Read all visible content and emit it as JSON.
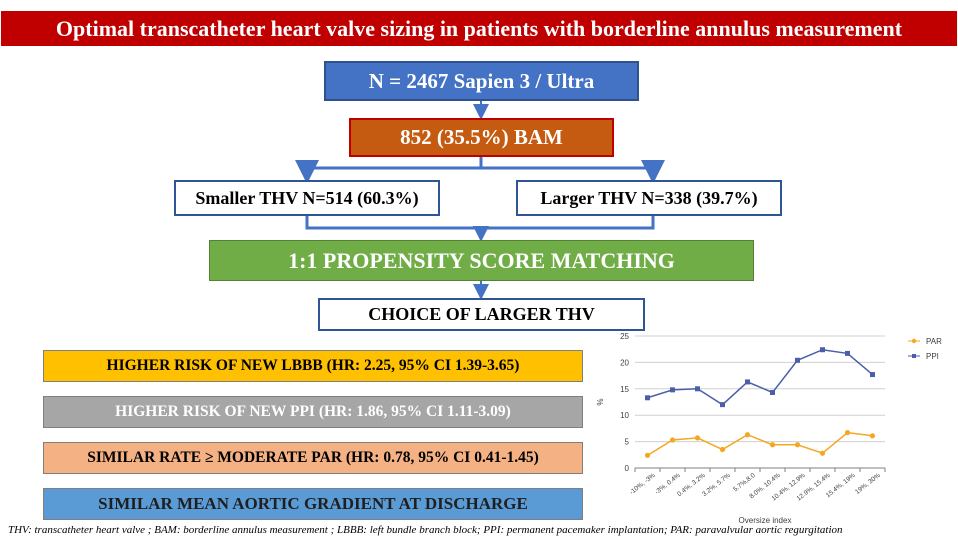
{
  "title": "Optimal transcatheter heart valve sizing in patients with borderline annulus measurement",
  "flow": {
    "n_label": "N = 2467 Sapien 3 / Ultra",
    "bam_label": "852 (35.5%) BAM",
    "smaller_label": "Smaller THV N=514 (60.3%)",
    "larger_label": "Larger THV N=338 (39.7%)",
    "psm_label": "1:1 PROPENSITY SCORE MATCHING",
    "choice_label": "CHOICE OF LARGER THV"
  },
  "results": {
    "lbbb": "HIGHER RISK OF NEW LBBB (HR: 2.25, 95% CI 1.39-3.65)",
    "ppi": "HIGHER RISK OF NEW PPI (HR: 1.86, 95% CI 1.11-3.09)",
    "par": "SIMILAR RATE ≥ MODERATE PAR (HR: 0.78, 95% CI 0.41-1.45)",
    "gradient": "SIMILAR MEAN AORTIC GRADIENT AT DISCHARGE"
  },
  "footnote": "THV: transcatheter heart valve ; BAM: borderline annulus measurement ; LBBB: left bundle branch block; PPI: permanent pacemaker implantation; PAR: paravalvular aortic regurgitation",
  "colors": {
    "title_bg": "#c00000",
    "n_box": "#4472c4",
    "bam_box": "#c55a11",
    "psm_box": "#70ad47",
    "lbbb_box": "#ffc000",
    "ppi_box": "#a6a6a6",
    "par_box": "#f4b183",
    "gradient_box": "#5b9bd5",
    "connector": "#4472c4",
    "par_series": "#f5a623",
    "ppi_series": "#4a5fa8"
  },
  "chart_data": {
    "type": "line",
    "categories": [
      "-10%, -3%",
      "-3%, 0.4%",
      "0.4%, 3.2%",
      "3.2%, 5.7%",
      "5.7%,8.0",
      "8.0%, 10.4%",
      "10.4%, 12.9%",
      "12.9%, 15.4%",
      "15.4%, 19%",
      "19%, 30%"
    ],
    "series": [
      {
        "name": "PAR",
        "values": [
          2.4,
          5.3,
          5.7,
          3.5,
          6.3,
          4.4,
          4.4,
          2.8,
          6.7,
          6.1
        ],
        "color": "#f5a623",
        "marker": "circle"
      },
      {
        "name": "PPI",
        "values": [
          13.3,
          14.8,
          15.0,
          12.0,
          16.3,
          14.3,
          20.4,
          22.4,
          21.7,
          17.7
        ],
        "color": "#4a5fa8",
        "marker": "square"
      }
    ],
    "xlabel": "Oversize index",
    "ylabel": "%",
    "ylim": [
      0,
      25
    ],
    "yticks": [
      0,
      5,
      10,
      15,
      20,
      25
    ],
    "grid": true,
    "legend": "top-right"
  }
}
